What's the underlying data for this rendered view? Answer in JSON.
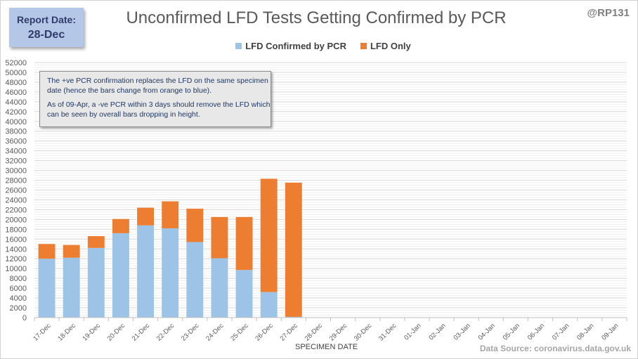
{
  "header": {
    "report_label": "Report Date:",
    "report_date": "28-Dec",
    "title": "Unconfirmed LFD Tests Getting Confirmed by PCR",
    "handle": "@RP131"
  },
  "note": {
    "line1": "The +ve PCR confirmation replaces the LFD on the same specimen date (hence the bars change from orange to blue).",
    "line2": "As of 09-Apr, a -ve PCR within 3 days should remove the LFD which can be seen by overall bars dropping  in height."
  },
  "footer": {
    "source": "Data Source: coronavirus.data.gov.uk"
  },
  "colors": {
    "confirmed": "#9dc3e6",
    "lfd_only": "#ed7d31",
    "grid": "#d9d9d9"
  },
  "chart_data": {
    "type": "bar",
    "stacked": true,
    "title": "Unconfirmed LFD Tests Getting Confirmed by PCR",
    "xlabel": "SPECIMEN DATE",
    "ylabel": "",
    "ylim": [
      0,
      52000
    ],
    "ytick_step": 2000,
    "grid": true,
    "legend_position": "top",
    "categories": [
      "17-Dec",
      "18-Dec",
      "19-Dec",
      "20-Dec",
      "21-Dec",
      "22-Dec",
      "23-Dec",
      "24-Dec",
      "25-Dec",
      "26-Dec",
      "27-Dec",
      "28-Dec",
      "29-Dec",
      "30-Dec",
      "31-Dec",
      "01-Jan",
      "02-Jan",
      "03-Jan",
      "04-Jan",
      "05-Jan",
      "06-Jan",
      "07-Jan",
      "08-Jan",
      "09-Jan"
    ],
    "series": [
      {
        "name": "LFD Confirmed by PCR",
        "values": [
          12000,
          12200,
          14200,
          17200,
          18800,
          18200,
          15400,
          12100,
          9700,
          5200,
          150,
          0,
          0,
          0,
          0,
          0,
          0,
          0,
          0,
          0,
          0,
          0,
          0,
          0
        ]
      },
      {
        "name": "LFD Only",
        "values": [
          3000,
          2600,
          2400,
          2900,
          3600,
          5500,
          6800,
          8400,
          10800,
          23100,
          27350,
          0,
          0,
          0,
          0,
          0,
          0,
          0,
          0,
          0,
          0,
          0,
          0,
          0
        ]
      }
    ]
  }
}
